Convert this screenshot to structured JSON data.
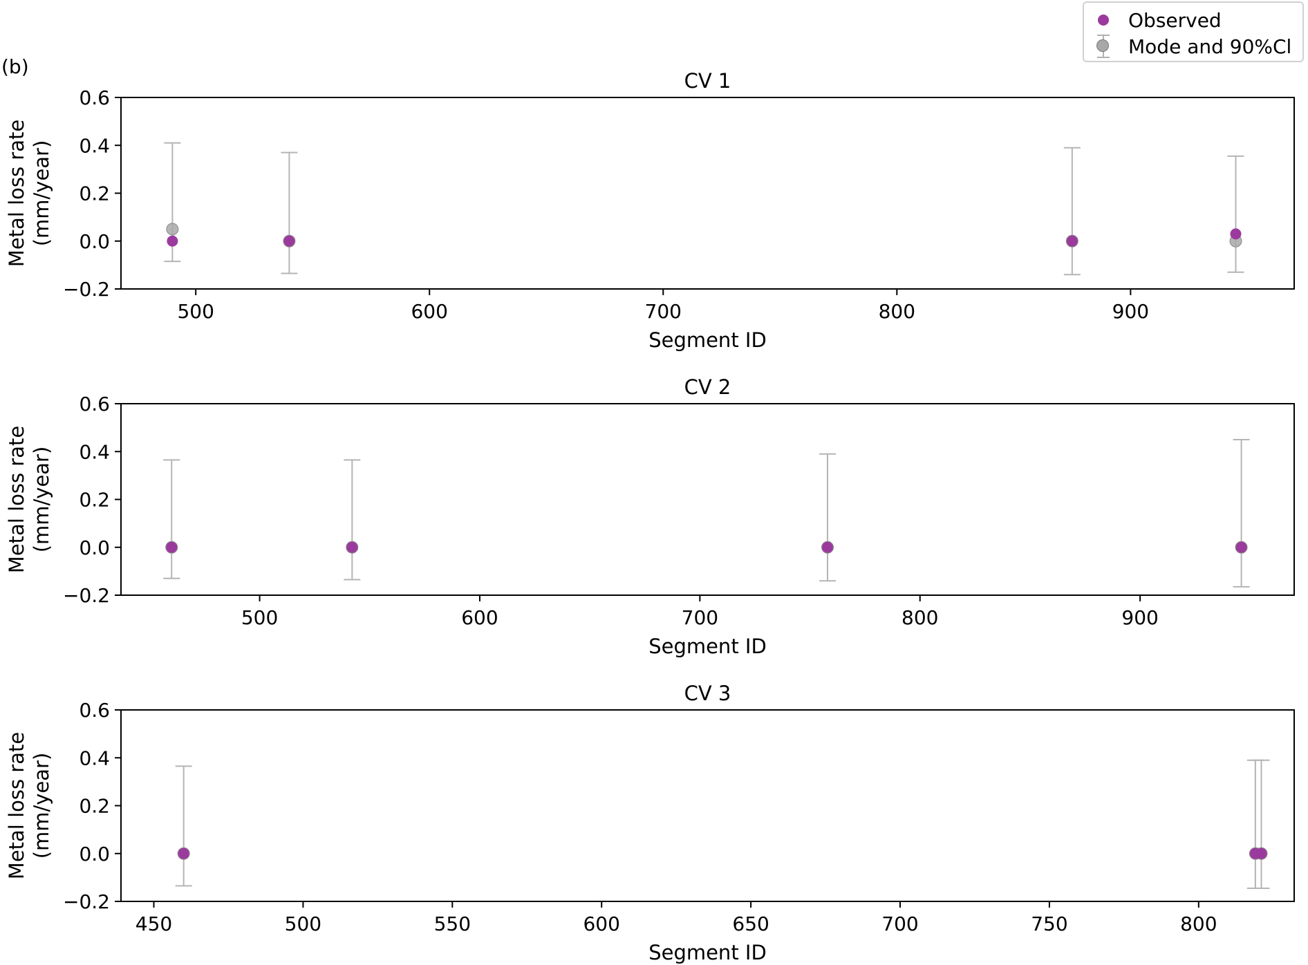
{
  "figure": {
    "panel_label": "(b)"
  },
  "colors": {
    "observed": "#9b3a9d",
    "mode": "#a8a8a8",
    "errorbar": "#b4b4b4"
  },
  "legend": {
    "observed_label": "Observed",
    "mode_label": "Mode and 90%Cl",
    "position": "top-right"
  },
  "chart_data": [
    {
      "type": "scatter",
      "title": "CV 1",
      "xlabel": "Segment ID",
      "ylabel": "Metal loss rate\n(mm/year)",
      "xlim": [
        468,
        970
      ],
      "ylim": [
        -0.2,
        0.6
      ],
      "xticks": [
        500,
        600,
        700,
        800,
        900
      ],
      "yticks": [
        0.6,
        0.4,
        0.2,
        0.0,
        -0.2
      ],
      "ytick_labels": [
        "0.6",
        "0.4",
        "0.2",
        "0.0",
        "−0.2"
      ],
      "series": [
        {
          "name": "Mode and 90%Cl",
          "points": [
            {
              "x": 490,
              "y": 0.05,
              "lower": -0.085,
              "upper": 0.41
            },
            {
              "x": 540,
              "y": 0.0,
              "lower": -0.135,
              "upper": 0.37
            },
            {
              "x": 875,
              "y": 0.0,
              "lower": -0.14,
              "upper": 0.39
            },
            {
              "x": 945,
              "y": 0.0,
              "lower": -0.13,
              "upper": 0.355
            }
          ]
        },
        {
          "name": "Observed",
          "points": [
            {
              "x": 490,
              "y": 0.0
            },
            {
              "x": 540,
              "y": 0.0
            },
            {
              "x": 875,
              "y": 0.0
            },
            {
              "x": 945,
              "y": 0.03
            }
          ]
        }
      ]
    },
    {
      "type": "scatter",
      "title": "CV 2",
      "xlabel": "Segment ID",
      "ylabel": "Metal loss rate\n(mm/year)",
      "xlim": [
        437,
        970
      ],
      "ylim": [
        -0.2,
        0.6
      ],
      "xticks": [
        500,
        600,
        700,
        800,
        900
      ],
      "yticks": [
        0.6,
        0.4,
        0.2,
        0.0,
        -0.2
      ],
      "ytick_labels": [
        "0.6",
        "0.4",
        "0.2",
        "0.0",
        "−0.2"
      ],
      "series": [
        {
          "name": "Mode and 90%Cl",
          "points": [
            {
              "x": 460,
              "y": 0.0,
              "lower": -0.13,
              "upper": 0.365
            },
            {
              "x": 542,
              "y": 0.0,
              "lower": -0.135,
              "upper": 0.365
            },
            {
              "x": 758,
              "y": 0.0,
              "lower": -0.14,
              "upper": 0.39
            },
            {
              "x": 946,
              "y": 0.0,
              "lower": -0.165,
              "upper": 0.45
            }
          ]
        },
        {
          "name": "Observed",
          "points": [
            {
              "x": 460,
              "y": 0.0
            },
            {
              "x": 542,
              "y": 0.0
            },
            {
              "x": 758,
              "y": 0.0
            },
            {
              "x": 946,
              "y": 0.0
            }
          ]
        }
      ]
    },
    {
      "type": "scatter",
      "title": "CV 3",
      "xlabel": "Segment ID",
      "ylabel": "Metal loss rate\n(mm/year)",
      "xlim": [
        439,
        832
      ],
      "ylim": [
        -0.2,
        0.6
      ],
      "xticks": [
        450,
        500,
        550,
        600,
        650,
        700,
        750,
        800
      ],
      "yticks": [
        0.6,
        0.4,
        0.2,
        0.0,
        -0.2
      ],
      "ytick_labels": [
        "0.6",
        "0.4",
        "0.2",
        "0.0",
        "−0.2"
      ],
      "series": [
        {
          "name": "Mode and 90%Cl",
          "points": [
            {
              "x": 460,
              "y": 0.0,
              "lower": -0.135,
              "upper": 0.365
            },
            {
              "x": 819,
              "y": 0.0,
              "lower": -0.145,
              "upper": 0.39
            },
            {
              "x": 821,
              "y": 0.0,
              "lower": -0.145,
              "upper": 0.39
            }
          ]
        },
        {
          "name": "Observed",
          "points": [
            {
              "x": 460,
              "y": 0.0
            },
            {
              "x": 819,
              "y": 0.0
            },
            {
              "x": 821,
              "y": 0.0
            }
          ]
        }
      ]
    }
  ]
}
